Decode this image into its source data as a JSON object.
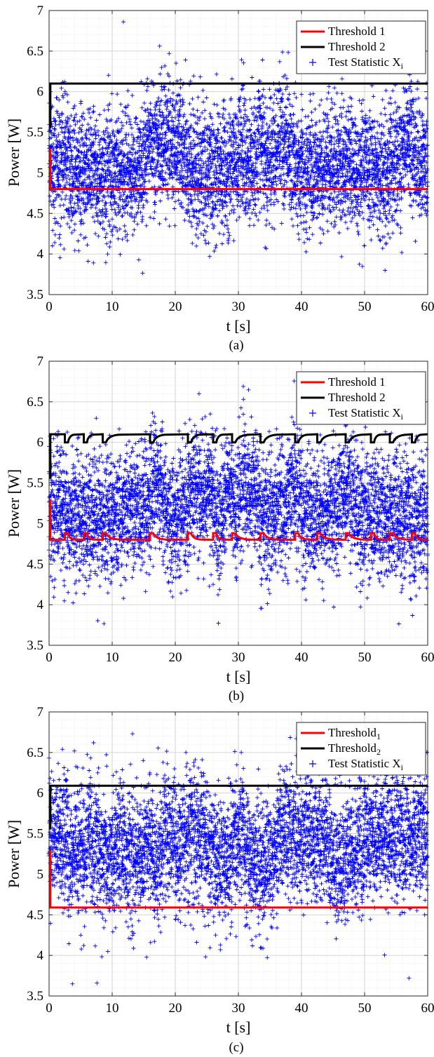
{
  "chart_data": [
    {
      "type": "scatter",
      "caption": "(a)",
      "xlabel": "t [s]",
      "ylabel": "Power [W]",
      "xlim": [
        0,
        60
      ],
      "ylim": [
        3.5,
        7
      ],
      "xticks": [
        0,
        10,
        20,
        30,
        40,
        50,
        60
      ],
      "yticks": [
        3.5,
        4,
        4.5,
        5,
        5.5,
        6,
        6.5,
        7
      ],
      "xtick_labels": [
        "0",
        "10",
        "20",
        "30",
        "40",
        "50",
        "60"
      ],
      "ytick_labels": [
        "3.5",
        "4",
        "4.5",
        "5",
        "5.5",
        "6",
        "6.5",
        "7"
      ],
      "grid": true,
      "legend_position": "top-right",
      "series": [
        {
          "name": "Threshold 1",
          "label_base": "Threshold 1",
          "label_sub": "",
          "kind": "line",
          "color": "#ff0000",
          "mode": "flat",
          "start": 5.3,
          "level": 4.8
        },
        {
          "name": "Threshold 2",
          "label_base": "Threshold 2",
          "label_sub": "",
          "kind": "line",
          "color": "#000000",
          "mode": "flat",
          "start": 5.55,
          "level": 6.1
        },
        {
          "name": "Test Statistic X_i",
          "label_base": "Test Statistic X",
          "label_sub": "i",
          "kind": "scatter",
          "color": "#0000ff",
          "mean": 5.15,
          "spread": 0.38,
          "high_segments": [
            [
              15,
              21
            ],
            [
              30,
              31
            ],
            [
              33,
              34
            ],
            [
              36,
              38
            ],
            [
              56,
              58
            ]
          ],
          "low_segments": [
            [
              3,
              14
            ],
            [
              22,
              29
            ],
            [
              40,
              47
            ],
            [
              48,
              54
            ]
          ]
        }
      ]
    },
    {
      "type": "scatter",
      "caption": "(b)",
      "xlabel": "t [s]",
      "ylabel": "Power [W]",
      "xlim": [
        0,
        60
      ],
      "ylim": [
        3.5,
        7
      ],
      "xticks": [
        0,
        10,
        20,
        30,
        40,
        50,
        60
      ],
      "yticks": [
        3.5,
        4,
        4.5,
        5,
        5.5,
        6,
        6.5,
        7
      ],
      "xtick_labels": [
        "0",
        "10",
        "20",
        "30",
        "40",
        "50",
        "60"
      ],
      "ytick_labels": [
        "3.5",
        "4",
        "4.5",
        "5",
        "5.5",
        "6",
        "6.5",
        "7"
      ],
      "grid": true,
      "legend_position": "top-right",
      "series": [
        {
          "name": "Threshold 1",
          "label_base": "Threshold 1",
          "label_sub": "",
          "kind": "line",
          "color": "#ff0000",
          "mode": "adaptive",
          "start": 5.3,
          "level": 4.8,
          "alt": 4.88,
          "bumps": [
            2.5,
            4,
            5.5,
            7,
            8.5,
            16,
            18.5,
            22,
            24,
            26,
            27.5,
            29,
            33.5,
            39,
            41,
            42.5,
            47,
            51,
            52.5,
            54,
            57.5,
            59
          ]
        },
        {
          "name": "Threshold 2",
          "label_base": "Threshold 2",
          "label_sub": "",
          "kind": "line",
          "color": "#000000",
          "mode": "adaptive",
          "start": 5.55,
          "level": 6.1,
          "alt": 6.0,
          "bumps": [
            2.5,
            4,
            5.5,
            7,
            8.5,
            16,
            18.5,
            22,
            24,
            26,
            27.5,
            29,
            33.5,
            39,
            41,
            42.5,
            47,
            51,
            52.5,
            54,
            57.5,
            59
          ]
        },
        {
          "name": "Test Statistic X_i",
          "label_base": "Test Statistic X",
          "label_sub": "i",
          "kind": "scatter",
          "color": "#0000ff",
          "mean": 5.2,
          "spread": 0.38,
          "high_segments": [
            [
              16,
              18
            ],
            [
              22,
              26
            ],
            [
              28,
              29
            ],
            [
              30,
              33
            ],
            [
              38,
              40
            ],
            [
              46,
              48
            ]
          ],
          "low_segments": [
            [
              3,
              12
            ],
            [
              18.5,
              21
            ],
            [
              26,
              27.5
            ],
            [
              33.5,
              36
            ],
            [
              40,
              45
            ],
            [
              49,
              60
            ]
          ]
        }
      ]
    },
    {
      "type": "scatter",
      "caption": "(c)",
      "xlabel": "t [s]",
      "ylabel": "Power [W]",
      "xlim": [
        0,
        60
      ],
      "ylim": [
        3.5,
        7
      ],
      "xticks": [
        0,
        10,
        20,
        30,
        40,
        50,
        60
      ],
      "yticks": [
        3.5,
        4,
        4.5,
        5,
        5.5,
        6,
        6.5,
        7
      ],
      "xtick_labels": [
        "0",
        "10",
        "20",
        "30",
        "40",
        "50",
        "60"
      ],
      "ytick_labels": [
        "3.5",
        "4",
        "4.5",
        "5",
        "5.5",
        "6",
        "6.5",
        "7"
      ],
      "grid": true,
      "legend_position": "top-right",
      "series": [
        {
          "name": "Threshold_1",
          "label_base": "Threshold",
          "label_sub": "1",
          "kind": "line",
          "color": "#ff0000",
          "mode": "flat",
          "start": 5.3,
          "level": 4.59
        },
        {
          "name": "Threshold_2",
          "label_base": "Threshold",
          "label_sub": "2",
          "kind": "line",
          "color": "#000000",
          "mode": "flat",
          "start": 5.55,
          "level": 6.09
        },
        {
          "name": "Test Statistic X_i",
          "label_base": "Test Statistic X",
          "label_sub": "i",
          "kind": "scatter",
          "color": "#0000ff",
          "mean": 5.25,
          "spread": 0.4,
          "high_segments": [
            [
              0,
              3
            ],
            [
              6,
              8
            ],
            [
              11,
              12
            ],
            [
              15,
              16
            ],
            [
              18,
              20
            ],
            [
              21,
              25
            ],
            [
              29,
              31
            ],
            [
              36,
              44
            ],
            [
              49,
              60
            ]
          ],
          "low_segments": [
            [
              8,
              10
            ],
            [
              12,
              14
            ],
            [
              16.5,
              17.5
            ],
            [
              26,
              28
            ],
            [
              32,
              35
            ],
            [
              45,
              47
            ]
          ]
        }
      ]
    }
  ]
}
